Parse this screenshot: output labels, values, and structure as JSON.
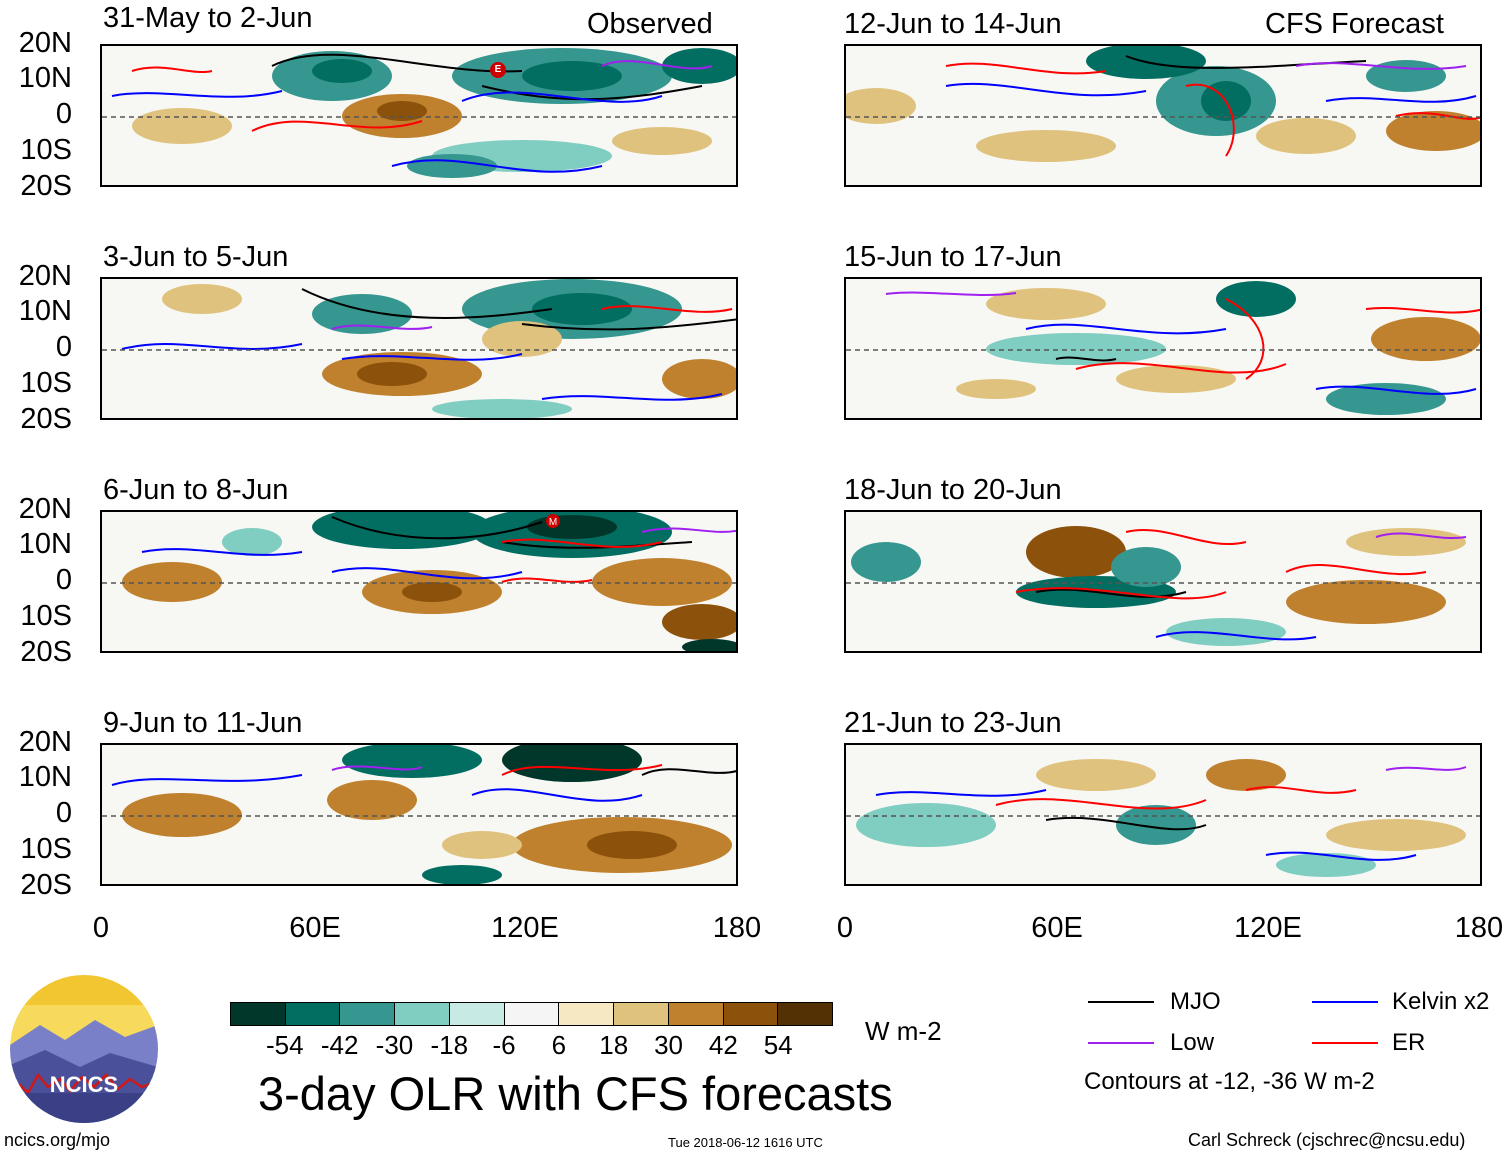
{
  "columns": {
    "observed_label": "Observed",
    "forecast_label": "CFS Forecast"
  },
  "panels": {
    "observed": [
      {
        "title": "31-May to 2-Jun"
      },
      {
        "title": "3-Jun to 5-Jun"
      },
      {
        "title": "6-Jun to 8-Jun"
      },
      {
        "title": "9-Jun to 11-Jun"
      }
    ],
    "forecast": [
      {
        "title": "12-Jun to 14-Jun"
      },
      {
        "title": "15-Jun to 17-Jun"
      },
      {
        "title": "18-Jun to 20-Jun"
      },
      {
        "title": "21-Jun to 23-Jun"
      }
    ]
  },
  "axes": {
    "lat_labels": [
      "20N",
      "10N",
      "0",
      "10S",
      "20S"
    ],
    "lon_labels": [
      "0",
      "60E",
      "120E",
      "180"
    ]
  },
  "markers": {
    "e_marker": "E",
    "m_marker": "M"
  },
  "colorbar": {
    "colors": [
      "#01362b",
      "#016e61",
      "#35978f",
      "#80cdc1",
      "#c7eae5",
      "#f5f5f5",
      "#f6e8c3",
      "#dfc27d",
      "#bf812d",
      "#8c510a",
      "#543005"
    ],
    "ticks": [
      "-54",
      "-42",
      "-30",
      "-18",
      "-6",
      "6",
      "18",
      "30",
      "42",
      "54"
    ],
    "units": "W m-2"
  },
  "legend": {
    "items": [
      {
        "label": "MJO",
        "color": "#000000"
      },
      {
        "label": "Kelvin x2",
        "color": "#0000ff"
      },
      {
        "label": "Low",
        "color": "#a020f0"
      },
      {
        "label": "ER",
        "color": "#ff0000"
      }
    ],
    "note": "Contours at -12, -36 W m-2"
  },
  "title": "3-day OLR with CFS forecasts",
  "logo": {
    "text": "NCICS"
  },
  "footer": {
    "url": "ncics.org/mjo",
    "timestamp": "Tue 2018-06-12 1616 UTC",
    "credit": "Carl Schreck (cjschrec@ncsu.edu)"
  }
}
